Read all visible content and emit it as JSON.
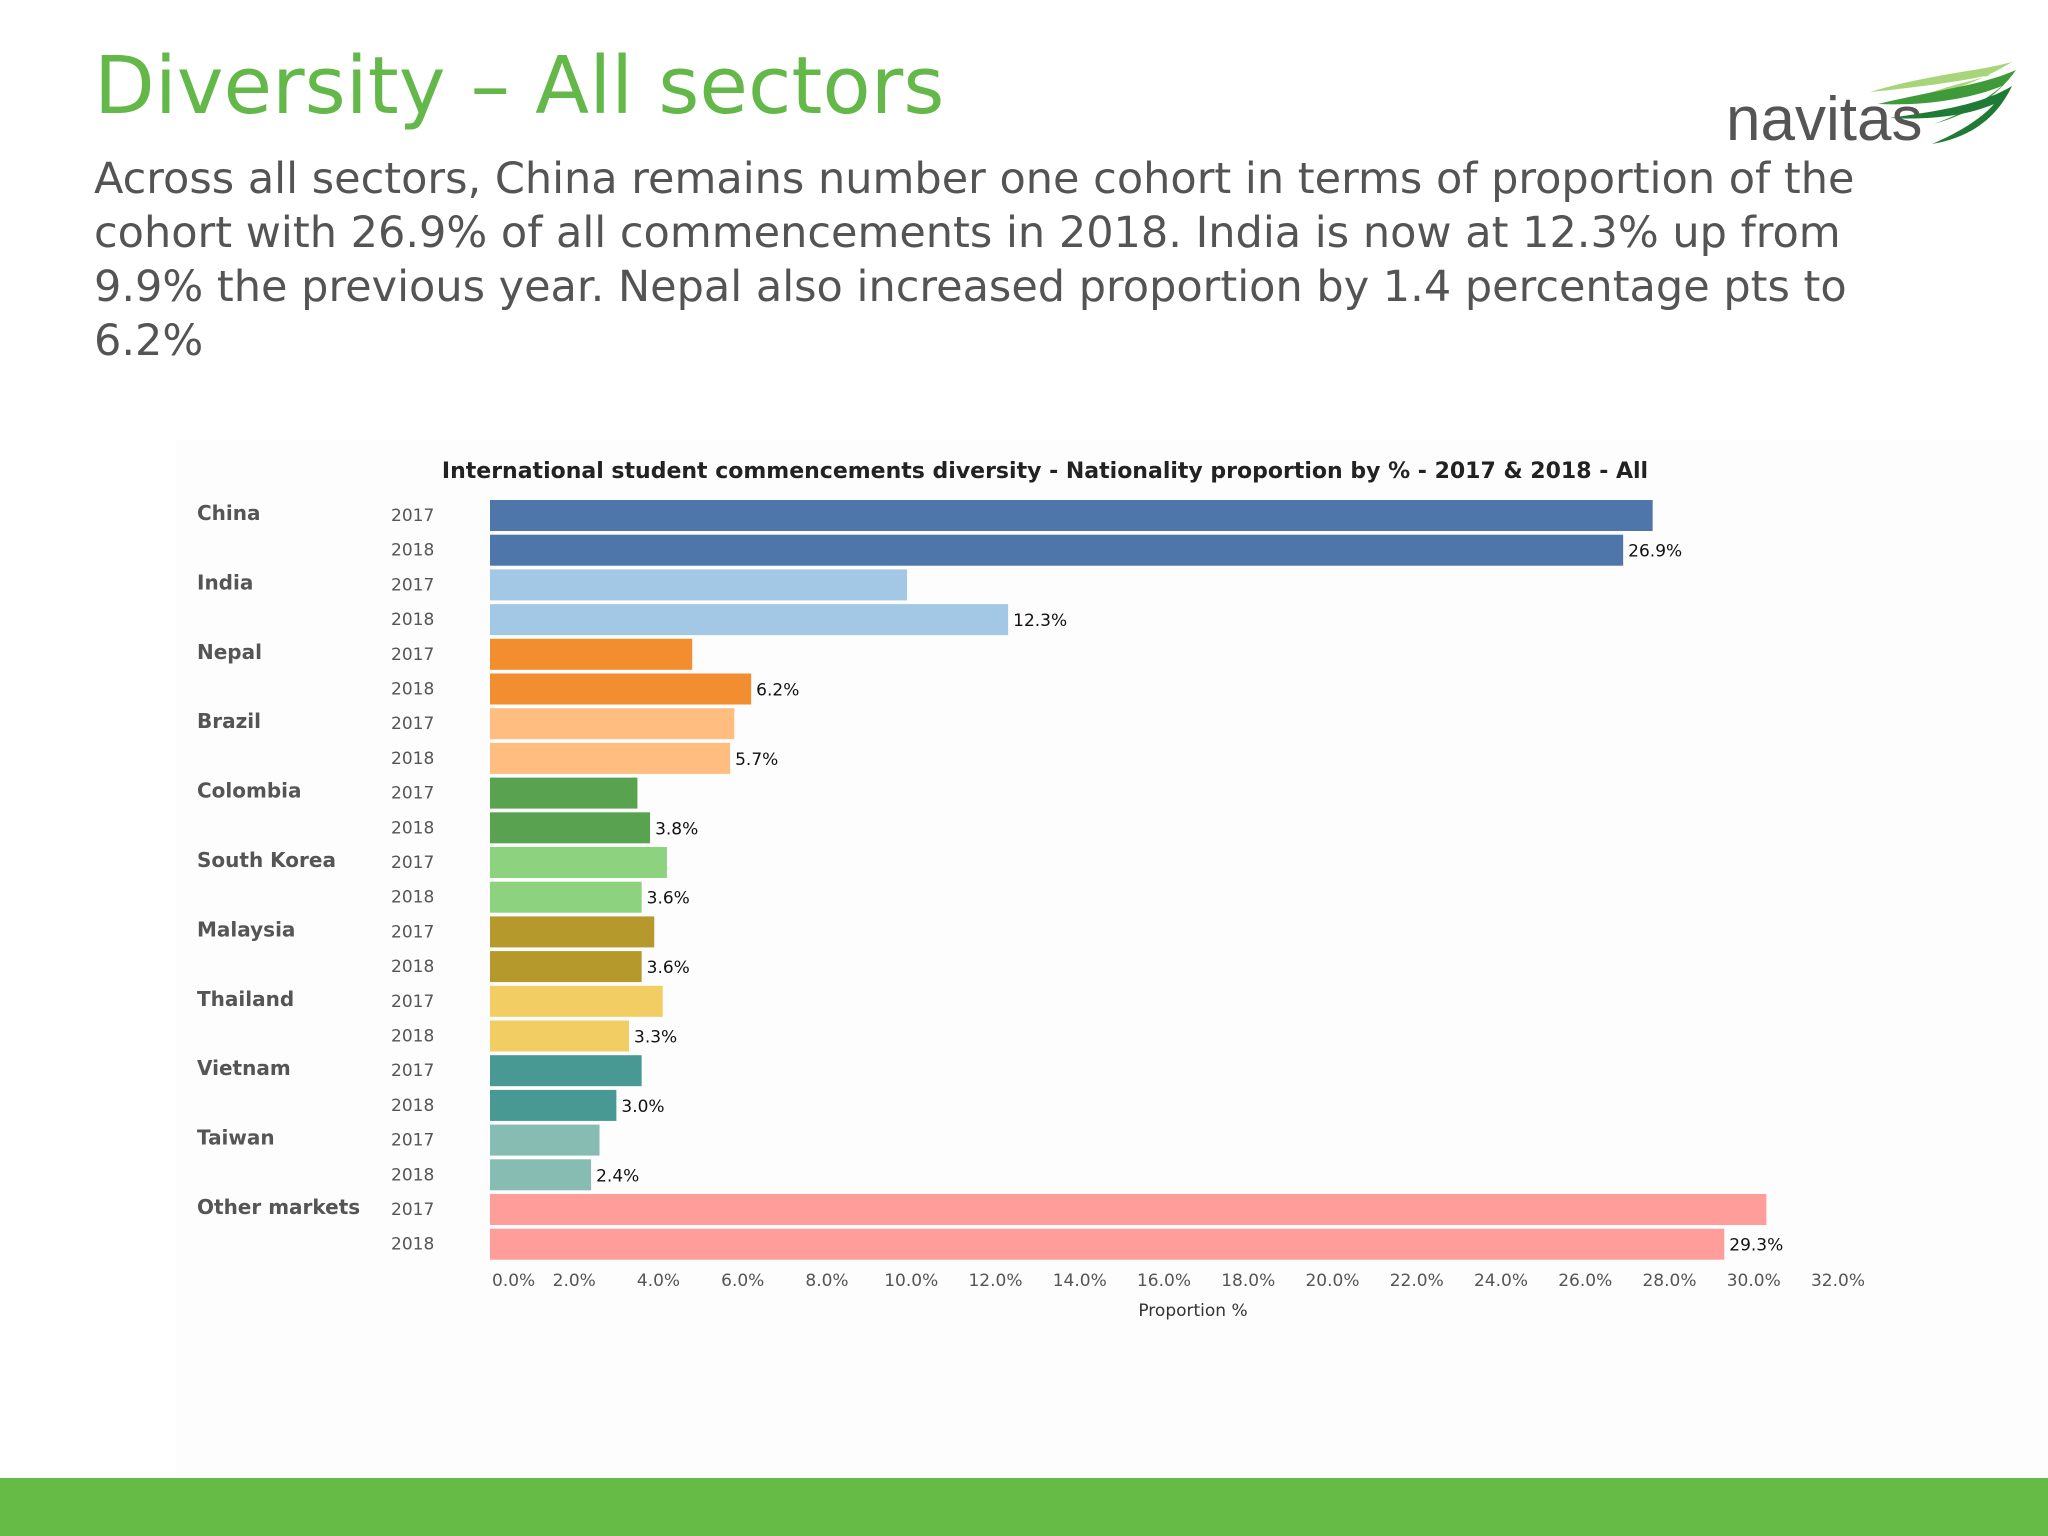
{
  "slide": {
    "title": "Diversity – All sectors",
    "subtitle": "Across all sectors, China remains number one cohort in terms of proportion of the cohort with 26.9% of all commencements in 2018. India is now at 12.3% up from 9.9% the previous year. Nepal also increased proportion by 1.4 percentage pts to 6.2%"
  },
  "logo": {
    "text": "navitas",
    "icon": "swoosh-icon"
  },
  "colors": {
    "title": "#64b84a",
    "footer": "#66bb47"
  },
  "chart_data": {
    "type": "bar",
    "orientation": "horizontal",
    "title": "International student commencements diversity -  Nationality proportion by % - 2017 & 2018 - All",
    "xlabel": "Proportion %",
    "ylabel": "",
    "xlim": [
      0,
      32
    ],
    "xticks": [
      "0.0%",
      "2.0%",
      "4.0%",
      "6.0%",
      "8.0%",
      "10.0%",
      "12.0%",
      "14.0%",
      "16.0%",
      "18.0%",
      "20.0%",
      "22.0%",
      "24.0%",
      "26.0%",
      "28.0%",
      "30.0%",
      "32.0%"
    ],
    "grid": false,
    "years": [
      "2017",
      "2018"
    ],
    "categories": [
      {
        "name": "China",
        "color": "#4e76aa",
        "values": [
          27.6,
          26.9
        ],
        "labels": [
          "",
          "26.9%"
        ]
      },
      {
        "name": "India",
        "color": "#a3c8e6",
        "values": [
          9.9,
          12.3
        ],
        "labels": [
          "",
          "12.3%"
        ]
      },
      {
        "name": "Nepal",
        "color": "#f28e30",
        "values": [
          4.8,
          6.2
        ],
        "labels": [
          "",
          "6.2%"
        ]
      },
      {
        "name": "Brazil",
        "color": "#ffbe80",
        "values": [
          5.8,
          5.7
        ],
        "labels": [
          "",
          "5.7%"
        ]
      },
      {
        "name": "Colombia",
        "color": "#59a24f",
        "values": [
          3.5,
          3.8
        ],
        "labels": [
          "",
          "3.8%"
        ]
      },
      {
        "name": "South Korea",
        "color": "#8dd27e",
        "values": [
          4.2,
          3.6
        ],
        "labels": [
          "",
          "3.6%"
        ]
      },
      {
        "name": "Malaysia",
        "color": "#b6992c",
        "values": [
          3.9,
          3.6
        ],
        "labels": [
          "",
          "3.6%"
        ]
      },
      {
        "name": "Thailand",
        "color": "#f1cd63",
        "values": [
          4.1,
          3.3
        ],
        "labels": [
          "",
          "3.3%"
        ]
      },
      {
        "name": "Vietnam",
        "color": "#489894",
        "values": [
          3.6,
          3.0
        ],
        "labels": [
          "",
          "3.0%"
        ]
      },
      {
        "name": "Taiwan",
        "color": "#87bcb3",
        "values": [
          2.6,
          2.4
        ],
        "labels": [
          "",
          "2.4%"
        ]
      },
      {
        "name": "Other markets",
        "color": "#fe9d9a",
        "values": [
          30.3,
          29.3
        ],
        "labels": [
          "",
          "29.3%"
        ]
      }
    ]
  }
}
